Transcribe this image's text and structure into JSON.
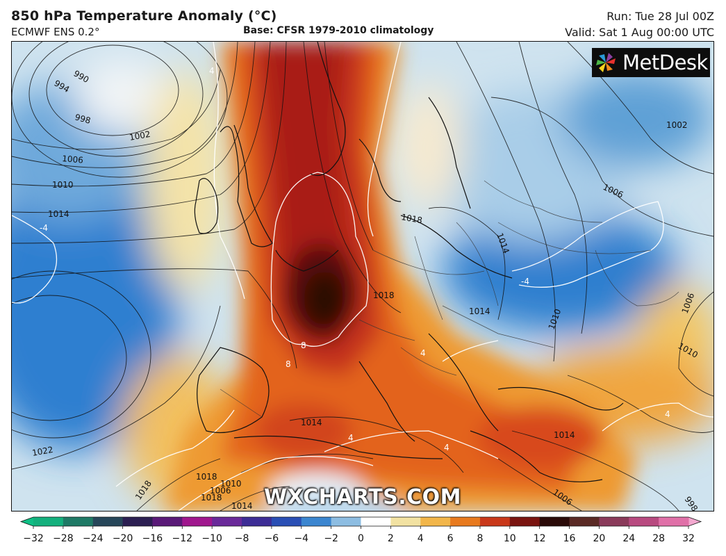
{
  "header": {
    "title": "850 hPa Temperature Anomaly (°C)",
    "model": "ECMWF ENS 0.2°",
    "base": "Base: CFSR 1979-2010 climatology",
    "run": "Run: Tue 28 Jul 00Z",
    "valid": "Valid: Sat 1 Aug 00:00 UTC"
  },
  "logo": {
    "text": "MetDesk"
  },
  "watermark": "WXCHARTS.COM",
  "isobar_labels": [
    {
      "text": "990"
    },
    {
      "text": "994"
    },
    {
      "text": "998"
    },
    {
      "text": "1002"
    },
    {
      "text": "1006"
    },
    {
      "text": "1010"
    },
    {
      "text": "1014"
    },
    {
      "text": "1018"
    },
    {
      "text": "1018"
    },
    {
      "text": "1014"
    },
    {
      "text": "1010"
    },
    {
      "text": "1006"
    },
    {
      "text": "1002"
    },
    {
      "text": "1006"
    },
    {
      "text": "1010"
    },
    {
      "text": "1006"
    },
    {
      "text": "998"
    },
    {
      "text": "1014"
    },
    {
      "text": "1018"
    },
    {
      "text": "1022"
    },
    {
      "text": "1014"
    },
    {
      "text": "1018"
    },
    {
      "text": "1014"
    },
    {
      "text": "1006"
    },
    {
      "text": "1010"
    },
    {
      "text": "1018"
    },
    {
      "text": "1014"
    }
  ],
  "anomaly_labels": [
    {
      "text": "4"
    },
    {
      "text": "-4"
    },
    {
      "text": "8"
    },
    {
      "text": "8"
    },
    {
      "text": "-4"
    },
    {
      "text": "4"
    },
    {
      "text": "4"
    },
    {
      "text": "4"
    },
    {
      "text": "4"
    }
  ],
  "colorbar": {
    "ticks": [
      "−32",
      "−28",
      "−24",
      "−20",
      "−16",
      "−12",
      "−10",
      "−8",
      "−6",
      "−4",
      "−2",
      "0",
      "2",
      "4",
      "6",
      "8",
      "10",
      "12",
      "16",
      "20",
      "24",
      "28",
      "32"
    ],
    "colors": [
      "#14b07d",
      "#1f7a66",
      "#27475a",
      "#2c1f52",
      "#5a1a78",
      "#a0178e",
      "#6a2a9a",
      "#3d2d96",
      "#2a4fb5",
      "#3b86d0",
      "#8dbde2",
      "#ffffff",
      "#f2e2a2",
      "#f2b64a",
      "#e87a1e",
      "#c9381a",
      "#7a1410",
      "#2a0a08",
      "#5a2a25",
      "#8a3a5a",
      "#b84a80",
      "#e070a8",
      "#f7b6d6"
    ],
    "left_color": "#0fbf85",
    "right_color": "#f3a8cf"
  }
}
